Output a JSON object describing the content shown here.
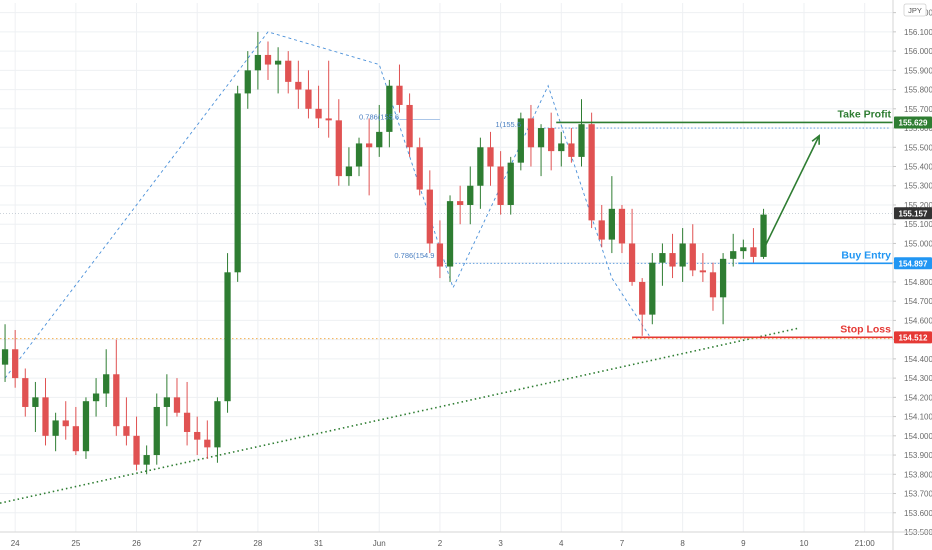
{
  "chart_data": {
    "type": "candlestick",
    "currency": "JPY",
    "ylim": [
      153.5,
      156.25
    ],
    "y_ticks": [
      "156.200",
      "156.100",
      "156.000",
      "155.900",
      "155.800",
      "155.700",
      "155.600",
      "155.500",
      "155.400",
      "155.300",
      "155.200",
      "155.100",
      "155.000",
      "154.900",
      "154.800",
      "154.700",
      "154.600",
      "154.500",
      "154.400",
      "154.300",
      "154.200",
      "154.100",
      "154.000",
      "153.900",
      "153.800",
      "153.700",
      "153.600",
      "153.500"
    ],
    "x_ticks": [
      {
        "label": "24",
        "t": 1.5
      },
      {
        "label": "25",
        "t": 7.5
      },
      {
        "label": "26",
        "t": 13.5
      },
      {
        "label": "27",
        "t": 19.5
      },
      {
        "label": "28",
        "t": 25.5
      },
      {
        "label": "31",
        "t": 31.5
      },
      {
        "label": "Jun",
        "t": 37.5
      },
      {
        "label": "2",
        "t": 43.5
      },
      {
        "label": "3",
        "t": 49.5
      },
      {
        "label": "4",
        "t": 55.5
      },
      {
        "label": "7",
        "t": 61.5
      },
      {
        "label": "8",
        "t": 67.5
      },
      {
        "label": "9",
        "t": 73.5
      },
      {
        "label": "10",
        "t": 79.5
      },
      {
        "label": "21:00",
        "t": 85.5
      }
    ],
    "x_range": [
      0,
      88.3
    ],
    "candles": [
      {
        "o": 154.37,
        "h": 154.58,
        "l": 154.28,
        "c": 154.45
      },
      {
        "o": 154.45,
        "h": 154.55,
        "l": 154.25,
        "c": 154.3
      },
      {
        "o": 154.3,
        "h": 154.35,
        "l": 154.1,
        "c": 154.15
      },
      {
        "o": 154.15,
        "h": 154.28,
        "l": 154.02,
        "c": 154.2
      },
      {
        "o": 154.2,
        "h": 154.3,
        "l": 153.95,
        "c": 154.0
      },
      {
        "o": 154.0,
        "h": 154.12,
        "l": 153.92,
        "c": 154.08
      },
      {
        "o": 154.08,
        "h": 154.18,
        "l": 153.98,
        "c": 154.05
      },
      {
        "o": 154.05,
        "h": 154.15,
        "l": 153.9,
        "c": 153.92
      },
      {
        "o": 153.92,
        "h": 154.2,
        "l": 153.88,
        "c": 154.18
      },
      {
        "o": 154.18,
        "h": 154.3,
        "l": 154.1,
        "c": 154.22
      },
      {
        "o": 154.22,
        "h": 154.45,
        "l": 154.15,
        "c": 154.32
      },
      {
        "o": 154.32,
        "h": 154.5,
        "l": 154.0,
        "c": 154.05
      },
      {
        "o": 154.05,
        "h": 154.2,
        "l": 153.95,
        "c": 154.0
      },
      {
        "o": 154.0,
        "h": 154.1,
        "l": 153.82,
        "c": 153.85
      },
      {
        "o": 153.85,
        "h": 153.95,
        "l": 153.8,
        "c": 153.9
      },
      {
        "o": 153.9,
        "h": 154.22,
        "l": 153.85,
        "c": 154.15
      },
      {
        "o": 154.15,
        "h": 154.32,
        "l": 154.05,
        "c": 154.2
      },
      {
        "o": 154.2,
        "h": 154.3,
        "l": 154.1,
        "c": 154.12
      },
      {
        "o": 154.12,
        "h": 154.28,
        "l": 153.95,
        "c": 154.02
      },
      {
        "o": 154.02,
        "h": 154.1,
        "l": 153.9,
        "c": 153.98
      },
      {
        "o": 153.98,
        "h": 154.08,
        "l": 153.88,
        "c": 153.94
      },
      {
        "o": 153.94,
        "h": 154.2,
        "l": 153.86,
        "c": 154.18
      },
      {
        "o": 154.18,
        "h": 154.95,
        "l": 154.12,
        "c": 154.85
      },
      {
        "o": 154.85,
        "h": 155.82,
        "l": 154.8,
        "c": 155.78
      },
      {
        "o": 155.78,
        "h": 156.0,
        "l": 155.7,
        "c": 155.9
      },
      {
        "o": 155.9,
        "h": 156.1,
        "l": 155.8,
        "c": 155.98
      },
      {
        "o": 155.98,
        "h": 156.05,
        "l": 155.85,
        "c": 155.93
      },
      {
        "o": 155.93,
        "h": 156.02,
        "l": 155.78,
        "c": 155.95
      },
      {
        "o": 155.95,
        "h": 156.0,
        "l": 155.78,
        "c": 155.84
      },
      {
        "o": 155.84,
        "h": 155.95,
        "l": 155.7,
        "c": 155.8
      },
      {
        "o": 155.8,
        "h": 155.9,
        "l": 155.65,
        "c": 155.7
      },
      {
        "o": 155.7,
        "h": 155.82,
        "l": 155.6,
        "c": 155.65
      },
      {
        "o": 155.65,
        "h": 155.95,
        "l": 155.55,
        "c": 155.64
      },
      {
        "o": 155.64,
        "h": 155.75,
        "l": 155.3,
        "c": 155.35
      },
      {
        "o": 155.35,
        "h": 155.5,
        "l": 155.3,
        "c": 155.4
      },
      {
        "o": 155.4,
        "h": 155.55,
        "l": 155.35,
        "c": 155.52
      },
      {
        "o": 155.52,
        "h": 155.65,
        "l": 155.25,
        "c": 155.5
      },
      {
        "o": 155.5,
        "h": 155.72,
        "l": 155.45,
        "c": 155.58
      },
      {
        "o": 155.58,
        "h": 155.85,
        "l": 155.5,
        "c": 155.82
      },
      {
        "o": 155.82,
        "h": 155.93,
        "l": 155.68,
        "c": 155.72
      },
      {
        "o": 155.72,
        "h": 155.78,
        "l": 155.45,
        "c": 155.5
      },
      {
        "o": 155.5,
        "h": 155.55,
        "l": 155.25,
        "c": 155.28
      },
      {
        "o": 155.28,
        "h": 155.38,
        "l": 154.95,
        "c": 155.0
      },
      {
        "o": 155.0,
        "h": 155.12,
        "l": 154.82,
        "c": 154.88
      },
      {
        "o": 154.88,
        "h": 155.25,
        "l": 154.8,
        "c": 155.22
      },
      {
        "o": 155.22,
        "h": 155.3,
        "l": 155.1,
        "c": 155.2
      },
      {
        "o": 155.2,
        "h": 155.4,
        "l": 155.1,
        "c": 155.3
      },
      {
        "o": 155.3,
        "h": 155.55,
        "l": 155.18,
        "c": 155.5
      },
      {
        "o": 155.5,
        "h": 155.58,
        "l": 155.3,
        "c": 155.4
      },
      {
        "o": 155.4,
        "h": 155.48,
        "l": 155.15,
        "c": 155.2
      },
      {
        "o": 155.2,
        "h": 155.45,
        "l": 155.15,
        "c": 155.42
      },
      {
        "o": 155.42,
        "h": 155.68,
        "l": 155.38,
        "c": 155.65
      },
      {
        "o": 155.65,
        "h": 155.72,
        "l": 155.4,
        "c": 155.5
      },
      {
        "o": 155.5,
        "h": 155.62,
        "l": 155.35,
        "c": 155.6
      },
      {
        "o": 155.6,
        "h": 155.68,
        "l": 155.38,
        "c": 155.48
      },
      {
        "o": 155.48,
        "h": 155.58,
        "l": 155.4,
        "c": 155.52
      },
      {
        "o": 155.52,
        "h": 155.6,
        "l": 155.42,
        "c": 155.45
      },
      {
        "o": 155.45,
        "h": 155.75,
        "l": 155.4,
        "c": 155.62
      },
      {
        "o": 155.62,
        "h": 155.68,
        "l": 155.08,
        "c": 155.12
      },
      {
        "o": 155.12,
        "h": 155.2,
        "l": 154.98,
        "c": 155.02
      },
      {
        "o": 155.02,
        "h": 155.35,
        "l": 154.95,
        "c": 155.18
      },
      {
        "o": 155.18,
        "h": 155.2,
        "l": 154.95,
        "c": 155.0
      },
      {
        "o": 155.0,
        "h": 155.18,
        "l": 154.78,
        "c": 154.8
      },
      {
        "o": 154.8,
        "h": 154.82,
        "l": 154.52,
        "c": 154.63
      },
      {
        "o": 154.63,
        "h": 154.95,
        "l": 154.58,
        "c": 154.9
      },
      {
        "o": 154.9,
        "h": 155.0,
        "l": 154.78,
        "c": 154.95
      },
      {
        "o": 154.95,
        "h": 155.05,
        "l": 154.82,
        "c": 154.88
      },
      {
        "o": 154.88,
        "h": 155.08,
        "l": 154.8,
        "c": 155.0
      },
      {
        "o": 155.0,
        "h": 155.1,
        "l": 154.83,
        "c": 154.86
      },
      {
        "o": 154.86,
        "h": 154.95,
        "l": 154.8,
        "c": 154.85
      },
      {
        "o": 154.85,
        "h": 154.9,
        "l": 154.65,
        "c": 154.72
      },
      {
        "o": 154.72,
        "h": 154.95,
        "l": 154.58,
        "c": 154.92
      },
      {
        "o": 154.92,
        "h": 155.05,
        "l": 154.88,
        "c": 154.96
      },
      {
        "o": 154.96,
        "h": 155.02,
        "l": 154.92,
        "c": 154.98
      },
      {
        "o": 154.98,
        "h": 155.08,
        "l": 154.9,
        "c": 154.93
      },
      {
        "o": 154.93,
        "h": 155.18,
        "l": 154.92,
        "c": 155.15
      }
    ],
    "levels": [
      {
        "name": "Take Profit",
        "price": 155.629,
        "tag": "155.629",
        "color": "#2e7d32",
        "t_start": 55.0
      },
      {
        "name": "Buy Entry",
        "price": 154.897,
        "tag": "154.897",
        "color": "#2196f3",
        "t_start": 73.0
      },
      {
        "name": "Stop Loss",
        "price": 154.512,
        "tag": "154.512",
        "color": "#e53935",
        "t_start": 62.5
      }
    ],
    "current_price": {
      "price": 155.157,
      "tag": "155.157",
      "color": "#333333"
    },
    "fib_labels": [
      {
        "text": "0.786(155.6",
        "t": 35.5,
        "price": 155.64
      },
      {
        "text": "1(155.6",
        "t": 49.0,
        "price": 155.6
      },
      {
        "text": "0.786(154.9",
        "t": 39.0,
        "price": 154.92
      }
    ],
    "colors": {
      "up": "#2e7d32",
      "down": "#e05252",
      "grid": "#eef0f3",
      "axis_text": "#6b6b6b"
    }
  }
}
